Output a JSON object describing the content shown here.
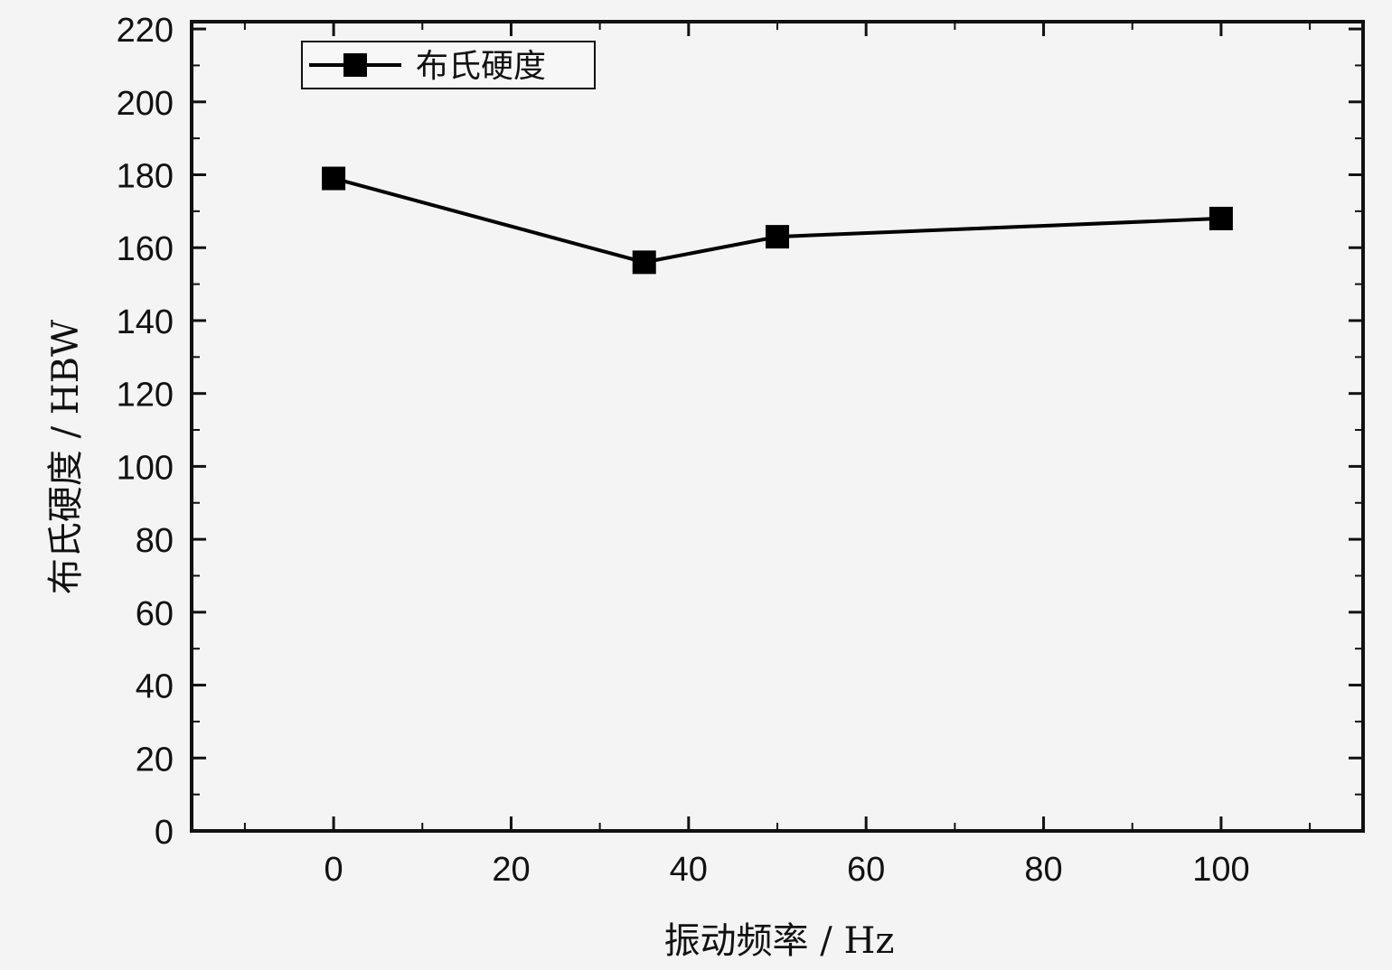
{
  "chart_data": {
    "type": "line",
    "xlabel": "振动频率 / Hz",
    "ylabel": "布氏硬度 / HBW",
    "xlim": [
      -16,
      116
    ],
    "ylim": [
      0,
      222
    ],
    "x_ticks": [
      "0",
      "20",
      "40",
      "60",
      "80",
      "100"
    ],
    "y_ticks": [
      "0",
      "20",
      "40",
      "60",
      "80",
      "100",
      "120",
      "140",
      "160",
      "180",
      "200",
      "220"
    ],
    "legend_position": "top-left",
    "grid": false,
    "series": [
      {
        "name": "布氏硬度",
        "color": "#000000",
        "marker": "square",
        "x": [
          0,
          35,
          50,
          100
        ],
        "y": [
          179,
          156,
          163,
          168
        ]
      }
    ]
  }
}
